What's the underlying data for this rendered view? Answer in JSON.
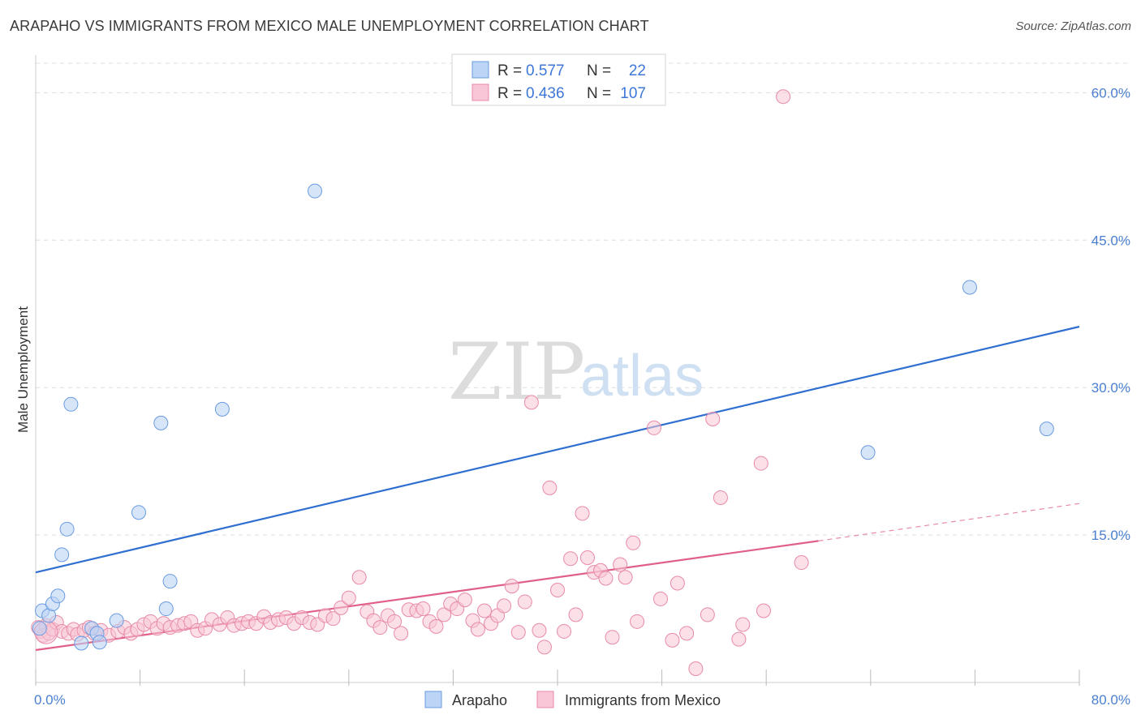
{
  "title": "ARAPAHO VS IMMIGRANTS FROM MEXICO MALE UNEMPLOYMENT CORRELATION CHART",
  "source": "Source: ZipAtlas.com",
  "watermark": {
    "zip": "ZIP",
    "atlas": "atlas"
  },
  "chart_data": {
    "type": "scatter",
    "ylabel": "Male Unemployment",
    "xlabel": "",
    "xlim": [
      0,
      80
    ],
    "ylim": [
      0,
      63
    ],
    "x_tick_labels": [
      {
        "value": 0,
        "label": "0.0%"
      },
      {
        "value": 80,
        "label": "80.0%"
      }
    ],
    "x_tick_marks": [
      0,
      8,
      16,
      24,
      32,
      40,
      48,
      56,
      64,
      72,
      80
    ],
    "y_ticks": [
      {
        "value": 15,
        "label": "15.0%"
      },
      {
        "value": 30,
        "label": "30.0%"
      },
      {
        "value": 45,
        "label": "45.0%"
      },
      {
        "value": 60,
        "label": "60.0%"
      }
    ],
    "grid": true,
    "legend_position": "top-center",
    "legend": [
      {
        "r_label": "R =",
        "r_value": "0.577",
        "n_label": "N =",
        "n_value": "22"
      },
      {
        "r_label": "R =",
        "r_value": "0.436",
        "n_label": "N =",
        "n_value": "107"
      }
    ],
    "series": [
      {
        "name": "Arapaho",
        "color": "#6a9be0",
        "fill": "#bcd4f5",
        "trend": {
          "x0": 0,
          "y0": 11.2,
          "x1": 80,
          "y1": 36.2
        },
        "points": [
          [
            0.3,
            5.5
          ],
          [
            0.5,
            7.3
          ],
          [
            1.0,
            6.8
          ],
          [
            1.3,
            8.0
          ],
          [
            1.7,
            8.8
          ],
          [
            2.0,
            13.0
          ],
          [
            2.4,
            15.6
          ],
          [
            2.7,
            28.3
          ],
          [
            3.5,
            4.0
          ],
          [
            4.3,
            5.5
          ],
          [
            4.7,
            5.0
          ],
          [
            4.9,
            4.1
          ],
          [
            6.2,
            6.3
          ],
          [
            7.9,
            17.3
          ],
          [
            9.6,
            26.4
          ],
          [
            10.0,
            7.5
          ],
          [
            10.3,
            10.3
          ],
          [
            14.3,
            27.8
          ],
          [
            21.4,
            50.0
          ],
          [
            63.8,
            23.4
          ],
          [
            71.6,
            40.2
          ],
          [
            77.5,
            25.8
          ]
        ]
      },
      {
        "name": "Immigrants from Mexico",
        "color": "#e88aa8",
        "fill": "#f8c6d6",
        "trend": {
          "x0": 0,
          "y0": 3.3,
          "x1": 60,
          "y1": 14.4
        },
        "trend_ext": {
          "x0": 60,
          "y0": 14.4,
          "x1": 80,
          "y1": 18.2
        },
        "points": [
          [
            0.2,
            5.6
          ],
          [
            0.4,
            5.2
          ],
          [
            0.6,
            4.8
          ],
          [
            0.8,
            5.8
          ],
          [
            1.0,
            5.0
          ],
          [
            1.3,
            5.4
          ],
          [
            1.6,
            6.1
          ],
          [
            2.0,
            5.2
          ],
          [
            2.5,
            5.0
          ],
          [
            2.9,
            5.4
          ],
          [
            3.2,
            4.9
          ],
          [
            3.7,
            5.3
          ],
          [
            4.1,
            5.6
          ],
          [
            4.5,
            5.0
          ],
          [
            5.0,
            5.3
          ],
          [
            5.6,
            4.8
          ],
          [
            6.3,
            5.2
          ],
          [
            6.8,
            5.6
          ],
          [
            7.3,
            5.0
          ],
          [
            7.8,
            5.4
          ],
          [
            8.3,
            5.9
          ],
          [
            8.8,
            6.2
          ],
          [
            9.3,
            5.5
          ],
          [
            9.8,
            6.0
          ],
          [
            10.3,
            5.6
          ],
          [
            10.9,
            5.8
          ],
          [
            11.4,
            6.0
          ],
          [
            11.9,
            6.2
          ],
          [
            12.4,
            5.3
          ],
          [
            13.0,
            5.5
          ],
          [
            13.5,
            6.4
          ],
          [
            14.1,
            5.9
          ],
          [
            14.7,
            6.6
          ],
          [
            15.2,
            5.8
          ],
          [
            15.8,
            6.0
          ],
          [
            16.3,
            6.2
          ],
          [
            16.9,
            6.0
          ],
          [
            17.5,
            6.7
          ],
          [
            18.0,
            6.1
          ],
          [
            18.6,
            6.4
          ],
          [
            19.2,
            6.6
          ],
          [
            19.8,
            6.0
          ],
          [
            20.4,
            6.6
          ],
          [
            21.0,
            6.1
          ],
          [
            21.6,
            5.9
          ],
          [
            22.2,
            6.8
          ],
          [
            22.8,
            6.5
          ],
          [
            23.4,
            7.6
          ],
          [
            24.0,
            8.6
          ],
          [
            24.8,
            10.7
          ],
          [
            25.4,
            7.2
          ],
          [
            25.9,
            6.3
          ],
          [
            26.4,
            5.6
          ],
          [
            27.0,
            6.8
          ],
          [
            27.5,
            6.2
          ],
          [
            28.0,
            5.0
          ],
          [
            28.6,
            7.4
          ],
          [
            29.2,
            7.3
          ],
          [
            29.7,
            7.5
          ],
          [
            30.2,
            6.2
          ],
          [
            30.7,
            5.7
          ],
          [
            31.3,
            6.9
          ],
          [
            31.8,
            8.0
          ],
          [
            32.3,
            7.5
          ],
          [
            32.9,
            8.4
          ],
          [
            33.5,
            6.3
          ],
          [
            33.9,
            5.4
          ],
          [
            34.4,
            7.3
          ],
          [
            34.9,
            6.0
          ],
          [
            35.4,
            6.8
          ],
          [
            35.9,
            7.8
          ],
          [
            36.5,
            9.8
          ],
          [
            37.0,
            5.1
          ],
          [
            37.5,
            8.2
          ],
          [
            38.0,
            28.5
          ],
          [
            38.6,
            5.3
          ],
          [
            39.0,
            3.6
          ],
          [
            39.4,
            19.8
          ],
          [
            40.0,
            9.4
          ],
          [
            40.5,
            5.2
          ],
          [
            41.0,
            12.6
          ],
          [
            41.4,
            6.9
          ],
          [
            41.9,
            17.2
          ],
          [
            42.3,
            12.7
          ],
          [
            42.8,
            11.2
          ],
          [
            43.3,
            11.4
          ],
          [
            43.7,
            10.6
          ],
          [
            44.2,
            4.6
          ],
          [
            44.8,
            12.0
          ],
          [
            45.2,
            10.7
          ],
          [
            45.8,
            14.2
          ],
          [
            46.1,
            6.2
          ],
          [
            47.4,
            25.9
          ],
          [
            47.9,
            8.5
          ],
          [
            48.8,
            4.3
          ],
          [
            49.2,
            10.1
          ],
          [
            49.9,
            5.0
          ],
          [
            50.6,
            1.4
          ],
          [
            51.5,
            6.9
          ],
          [
            51.9,
            26.8
          ],
          [
            52.5,
            18.8
          ],
          [
            53.9,
            4.4
          ],
          [
            54.2,
            5.9
          ],
          [
            55.8,
            7.3
          ],
          [
            55.6,
            22.3
          ],
          [
            57.3,
            59.6
          ],
          [
            58.7,
            12.2
          ]
        ]
      }
    ]
  },
  "bottom_legend": [
    {
      "label": "Arapaho"
    },
    {
      "label": "Immigrants from Mexico"
    }
  ]
}
